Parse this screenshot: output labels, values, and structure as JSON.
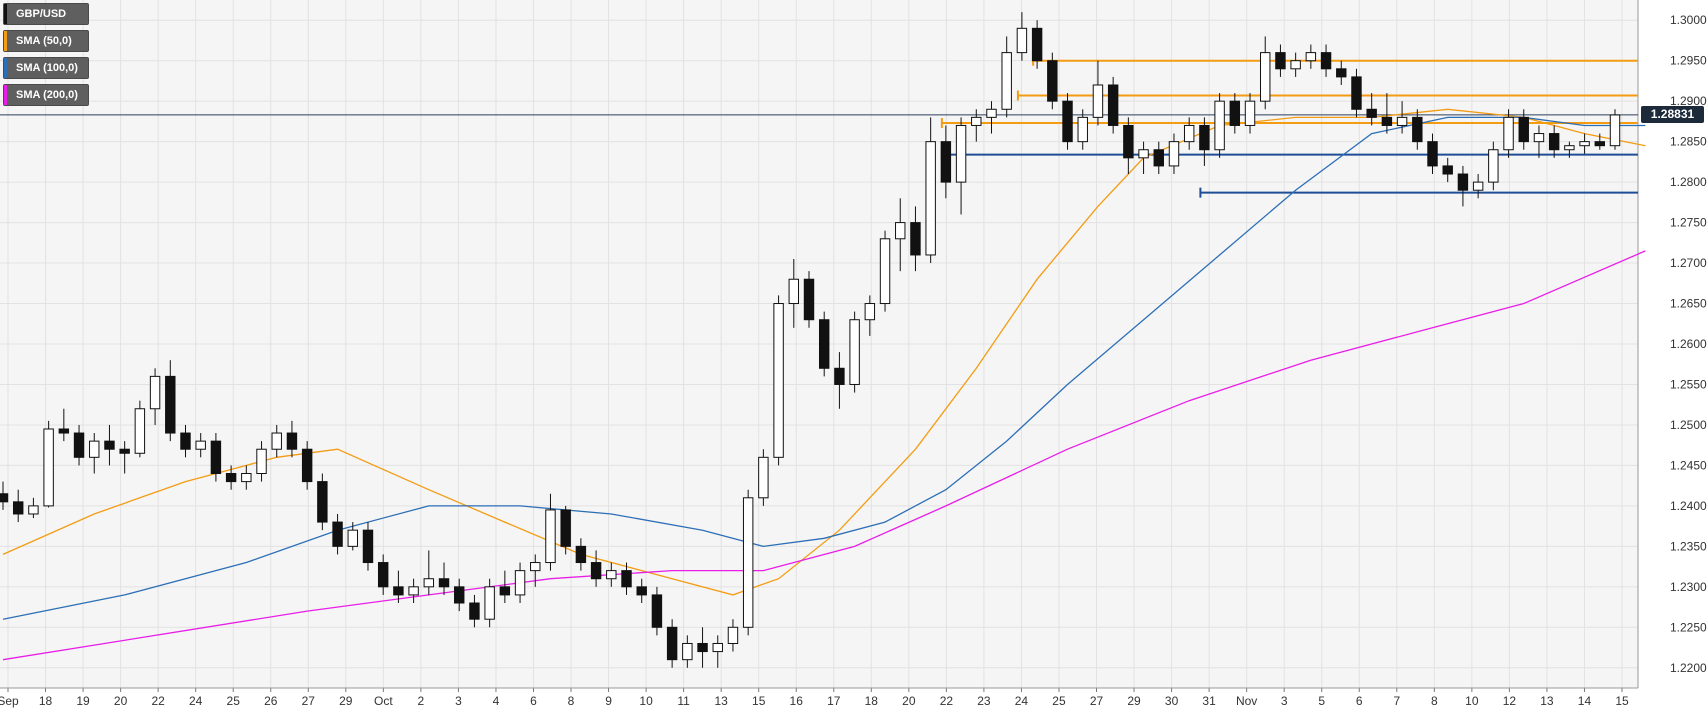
{
  "legend": [
    {
      "label": "GBP/USD",
      "color": "#111111"
    },
    {
      "label": "SMA (50,0)",
      "color": "#f39c12"
    },
    {
      "label": "SMA (100,0)",
      "color": "#2d6fb6"
    },
    {
      "label": "SMA (200,0)",
      "color": "#e81ee8"
    }
  ],
  "last_price_label": "1.28831",
  "chart_data": {
    "type": "candlestick",
    "ylim": [
      1.2175,
      1.3025
    ],
    "grid": true,
    "y_ticks": [
      "1.3000",
      "1.2950",
      "1.2900",
      "1.2850",
      "1.2800",
      "1.2750",
      "1.2700",
      "1.2650",
      "1.2600",
      "1.2550",
      "1.2500",
      "1.2450",
      "1.2400",
      "1.2350",
      "1.2300",
      "1.2250",
      "1.2200"
    ],
    "x_ticks": [
      "Sep",
      "18",
      "19",
      "20",
      "22",
      "24",
      "25",
      "26",
      "27",
      "29",
      "Oct",
      "2",
      "3",
      "4",
      "6",
      "8",
      "9",
      "10",
      "11",
      "13",
      "15",
      "16",
      "17",
      "18",
      "20",
      "22",
      "23",
      "24",
      "25",
      "27",
      "29",
      "30",
      "31",
      "Nov",
      "3",
      "5",
      "6",
      "7",
      "8",
      "10",
      "12",
      "13",
      "14",
      "15"
    ],
    "candles": [
      [
        1.2415,
        1.243,
        1.2395,
        1.2405
      ],
      [
        1.2405,
        1.242,
        1.238,
        1.239
      ],
      [
        1.239,
        1.241,
        1.2385,
        1.24
      ],
      [
        1.24,
        1.2505,
        1.2398,
        1.2495
      ],
      [
        1.2495,
        1.252,
        1.248,
        1.249
      ],
      [
        1.249,
        1.25,
        1.245,
        1.246
      ],
      [
        1.246,
        1.249,
        1.244,
        1.248
      ],
      [
        1.248,
        1.25,
        1.245,
        1.247
      ],
      [
        1.247,
        1.248,
        1.244,
        1.2465
      ],
      [
        1.2465,
        1.253,
        1.246,
        1.252
      ],
      [
        1.252,
        1.257,
        1.25,
        1.256
      ],
      [
        1.256,
        1.258,
        1.248,
        1.249
      ],
      [
        1.249,
        1.25,
        1.246,
        1.247
      ],
      [
        1.247,
        1.249,
        1.246,
        1.248
      ],
      [
        1.248,
        1.249,
        1.243,
        1.244
      ],
      [
        1.244,
        1.245,
        1.242,
        1.243
      ],
      [
        1.243,
        1.245,
        1.242,
        1.244
      ],
      [
        1.244,
        1.248,
        1.243,
        1.247
      ],
      [
        1.247,
        1.25,
        1.246,
        1.249
      ],
      [
        1.249,
        1.2505,
        1.246,
        1.247
      ],
      [
        1.247,
        1.248,
        1.242,
        1.243
      ],
      [
        1.243,
        1.244,
        1.237,
        1.238
      ],
      [
        1.238,
        1.239,
        1.234,
        1.235
      ],
      [
        1.235,
        1.238,
        1.2345,
        1.237
      ],
      [
        1.237,
        1.238,
        1.232,
        1.233
      ],
      [
        1.233,
        1.234,
        1.229,
        1.23
      ],
      [
        1.23,
        1.232,
        1.228,
        1.229
      ],
      [
        1.229,
        1.231,
        1.228,
        1.23
      ],
      [
        1.23,
        1.2345,
        1.229,
        1.231
      ],
      [
        1.231,
        1.233,
        1.229,
        1.23
      ],
      [
        1.23,
        1.231,
        1.227,
        1.228
      ],
      [
        1.228,
        1.229,
        1.225,
        1.226
      ],
      [
        1.226,
        1.231,
        1.225,
        1.23
      ],
      [
        1.23,
        1.232,
        1.228,
        1.229
      ],
      [
        1.229,
        1.233,
        1.228,
        1.232
      ],
      [
        1.232,
        1.234,
        1.23,
        1.233
      ],
      [
        1.233,
        1.2415,
        1.232,
        1.2395
      ],
      [
        1.2395,
        1.24,
        1.234,
        1.235
      ],
      [
        1.235,
        1.236,
        1.232,
        1.233
      ],
      [
        1.233,
        1.2345,
        1.23,
        1.231
      ],
      [
        1.231,
        1.233,
        1.23,
        1.232
      ],
      [
        1.232,
        1.233,
        1.229,
        1.23
      ],
      [
        1.23,
        1.231,
        1.228,
        1.229
      ],
      [
        1.229,
        1.23,
        1.224,
        1.225
      ],
      [
        1.225,
        1.226,
        1.22,
        1.221
      ],
      [
        1.221,
        1.224,
        1.22,
        1.223
      ],
      [
        1.223,
        1.225,
        1.22,
        1.222
      ],
      [
        1.222,
        1.224,
        1.22,
        1.223
      ],
      [
        1.223,
        1.226,
        1.222,
        1.225
      ],
      [
        1.225,
        1.242,
        1.224,
        1.241
      ],
      [
        1.241,
        1.247,
        1.24,
        1.246
      ],
      [
        1.246,
        1.266,
        1.245,
        1.265
      ],
      [
        1.265,
        1.2705,
        1.262,
        1.268
      ],
      [
        1.268,
        1.269,
        1.262,
        1.263
      ],
      [
        1.263,
        1.264,
        1.256,
        1.257
      ],
      [
        1.257,
        1.259,
        1.252,
        1.255
      ],
      [
        1.255,
        1.264,
        1.254,
        1.263
      ],
      [
        1.263,
        1.266,
        1.261,
        1.265
      ],
      [
        1.265,
        1.274,
        1.264,
        1.273
      ],
      [
        1.273,
        1.278,
        1.269,
        1.275
      ],
      [
        1.275,
        1.277,
        1.269,
        1.271
      ],
      [
        1.271,
        1.288,
        1.27,
        1.285
      ],
      [
        1.285,
        1.287,
        1.278,
        1.28
      ],
      [
        1.28,
        1.288,
        1.276,
        1.287
      ],
      [
        1.287,
        1.289,
        1.285,
        1.288
      ],
      [
        1.288,
        1.29,
        1.286,
        1.289
      ],
      [
        1.289,
        1.298,
        1.288,
        1.296
      ],
      [
        1.296,
        1.301,
        1.295,
        1.299
      ],
      [
        1.299,
        1.3,
        1.294,
        1.295
      ],
      [
        1.295,
        1.296,
        1.289,
        1.29
      ],
      [
        1.29,
        1.291,
        1.284,
        1.285
      ],
      [
        1.285,
        1.289,
        1.284,
        1.288
      ],
      [
        1.288,
        1.295,
        1.287,
        1.292
      ],
      [
        1.292,
        1.293,
        1.286,
        1.287
      ],
      [
        1.287,
        1.288,
        1.281,
        1.283
      ],
      [
        1.283,
        1.285,
        1.281,
        1.284
      ],
      [
        1.284,
        1.285,
        1.281,
        1.282
      ],
      [
        1.282,
        1.286,
        1.281,
        1.285
      ],
      [
        1.285,
        1.288,
        1.284,
        1.287
      ],
      [
        1.287,
        1.288,
        1.282,
        1.284
      ],
      [
        1.284,
        1.291,
        1.283,
        1.29
      ],
      [
        1.29,
        1.291,
        1.286,
        1.287
      ],
      [
        1.287,
        1.291,
        1.286,
        1.29
      ],
      [
        1.29,
        1.298,
        1.289,
        1.296
      ],
      [
        1.296,
        1.297,
        1.293,
        1.294
      ],
      [
        1.294,
        1.296,
        1.293,
        1.295
      ],
      [
        1.295,
        1.297,
        1.294,
        1.296
      ],
      [
        1.296,
        1.297,
        1.293,
        1.294
      ],
      [
        1.294,
        1.295,
        1.292,
        1.293
      ],
      [
        1.293,
        1.294,
        1.288,
        1.289
      ],
      [
        1.289,
        1.291,
        1.287,
        1.288
      ],
      [
        1.288,
        1.291,
        1.286,
        1.287
      ],
      [
        1.287,
        1.29,
        1.286,
        1.288
      ],
      [
        1.288,
        1.289,
        1.284,
        1.285
      ],
      [
        1.285,
        1.286,
        1.281,
        1.282
      ],
      [
        1.282,
        1.283,
        1.28,
        1.281
      ],
      [
        1.281,
        1.282,
        1.277,
        1.279
      ],
      [
        1.279,
        1.281,
        1.278,
        1.28
      ],
      [
        1.28,
        1.285,
        1.279,
        1.284
      ],
      [
        1.284,
        1.289,
        1.283,
        1.288
      ],
      [
        1.288,
        1.289,
        1.284,
        1.285
      ],
      [
        1.285,
        1.287,
        1.283,
        1.286
      ],
      [
        1.286,
        1.287,
        1.283,
        1.284
      ],
      [
        1.284,
        1.285,
        1.283,
        1.2845
      ],
      [
        1.2845,
        1.286,
        1.2835,
        1.285
      ],
      [
        1.285,
        1.286,
        1.284,
        1.2845
      ],
      [
        1.2845,
        1.289,
        1.284,
        1.2883
      ]
    ],
    "series": [
      {
        "name": "SMA (50,0)",
        "color": "#f39c12",
        "points": [
          [
            0,
            1.234
          ],
          [
            6,
            1.239
          ],
          [
            12,
            1.243
          ],
          [
            18,
            1.246
          ],
          [
            22,
            1.247
          ],
          [
            28,
            1.242
          ],
          [
            33,
            1.238
          ],
          [
            38,
            1.234
          ],
          [
            44,
            1.231
          ],
          [
            48,
            1.229
          ],
          [
            51,
            1.231
          ],
          [
            55,
            1.237
          ],
          [
            60,
            1.247
          ],
          [
            64,
            1.257
          ],
          [
            68,
            1.268
          ],
          [
            72,
            1.277
          ],
          [
            75,
            1.283
          ],
          [
            80,
            1.287
          ],
          [
            85,
            1.288
          ],
          [
            90,
            1.288
          ],
          [
            95,
            1.289
          ],
          [
            100,
            1.288
          ],
          [
            104,
            1.286
          ],
          [
            108,
            1.2845
          ]
        ]
      },
      {
        "name": "SMA (100,0)",
        "color": "#2d6fb6",
        "points": [
          [
            0,
            1.226
          ],
          [
            8,
            1.229
          ],
          [
            16,
            1.233
          ],
          [
            22,
            1.237
          ],
          [
            28,
            1.24
          ],
          [
            34,
            1.24
          ],
          [
            40,
            1.239
          ],
          [
            46,
            1.237
          ],
          [
            50,
            1.235
          ],
          [
            54,
            1.236
          ],
          [
            58,
            1.238
          ],
          [
            62,
            1.242
          ],
          [
            66,
            1.248
          ],
          [
            70,
            1.255
          ],
          [
            75,
            1.263
          ],
          [
            80,
            1.271
          ],
          [
            85,
            1.279
          ],
          [
            90,
            1.286
          ],
          [
            95,
            1.288
          ],
          [
            100,
            1.288
          ],
          [
            104,
            1.287
          ],
          [
            108,
            1.287
          ]
        ]
      },
      {
        "name": "SMA (200,0)",
        "color": "#e81ee8",
        "points": [
          [
            0,
            1.221
          ],
          [
            10,
            1.224
          ],
          [
            20,
            1.227
          ],
          [
            28,
            1.229
          ],
          [
            36,
            1.231
          ],
          [
            44,
            1.232
          ],
          [
            50,
            1.232
          ],
          [
            56,
            1.235
          ],
          [
            62,
            1.24
          ],
          [
            70,
            1.247
          ],
          [
            78,
            1.253
          ],
          [
            86,
            1.258
          ],
          [
            94,
            1.262
          ],
          [
            100,
            1.265
          ],
          [
            108,
            1.2715
          ]
        ]
      }
    ],
    "levels": [
      {
        "value": 1.295,
        "color": "#f39c12",
        "from": 68
      },
      {
        "value": 1.2907,
        "color": "#f39c12",
        "from": 67
      },
      {
        "value": 1.2873,
        "color": "#f39c12",
        "from": 62
      },
      {
        "value": 1.2834,
        "color": "#1f4e96",
        "from": 62
      },
      {
        "value": 1.2787,
        "color": "#1f4e96",
        "from": 79
      },
      {
        "value": 1.2883,
        "color": "#2b3f5c",
        "from": -2
      }
    ]
  }
}
